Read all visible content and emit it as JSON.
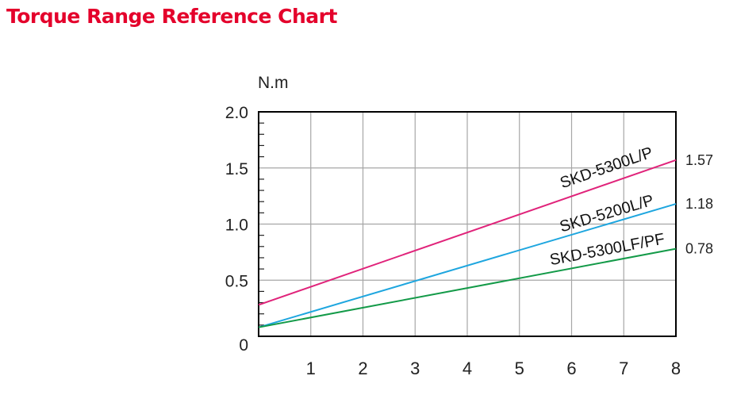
{
  "page": {
    "title": "Torque Range Reference Chart",
    "title_color": "#e4002b"
  },
  "chart_data": {
    "type": "line",
    "title": "",
    "ylabel": "N.m",
    "xlabel": "",
    "x_ticks": [
      "1",
      "2",
      "3",
      "4",
      "5",
      "6",
      "7",
      "8"
    ],
    "y_ticks": [
      "0",
      "0.5",
      "1.0",
      "1.5",
      "2.0"
    ],
    "xlim": [
      0,
      8
    ],
    "ylim": [
      0,
      2.0
    ],
    "grid": true,
    "series": [
      {
        "name": "SKD-5300L/P",
        "x": [
          0,
          8
        ],
        "y": [
          0.28,
          1.57
        ],
        "end_label": "1.57",
        "color": "#e0237a"
      },
      {
        "name": "SKD-5200L/P",
        "x": [
          0,
          8
        ],
        "y": [
          0.08,
          1.18
        ],
        "end_label": "1.18",
        "color": "#1ea6df"
      },
      {
        "name": "SKD-5300LF/PF",
        "x": [
          0,
          8
        ],
        "y": [
          0.08,
          0.78
        ],
        "end_label": "0.78",
        "color": "#139a48"
      }
    ]
  }
}
